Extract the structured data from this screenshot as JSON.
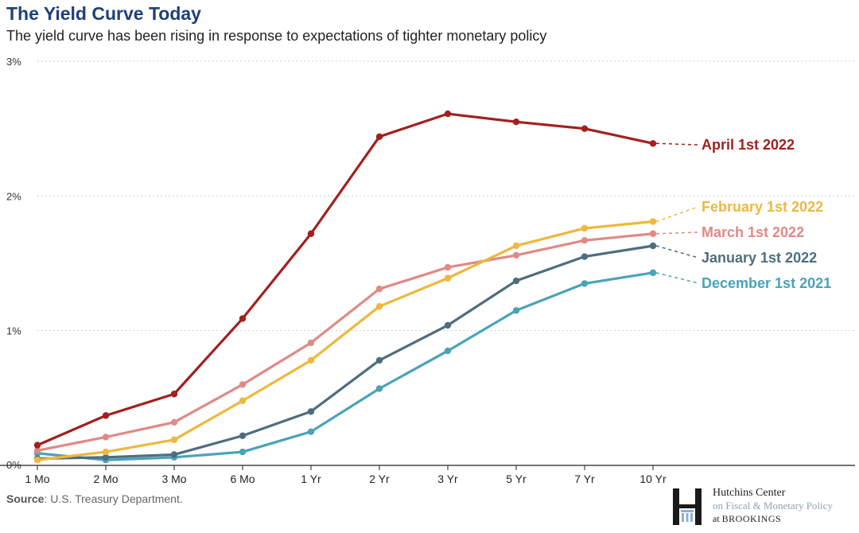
{
  "header": {
    "title": "The Yield Curve Today",
    "subtitle": "The yield curve has been rising in response to expectations of tighter monetary policy"
  },
  "footer": {
    "source_label": "Source",
    "source_text": ": U.S. Treasury Department."
  },
  "logo": {
    "icon": "brookings-h-icon",
    "line1": "Hutchins Center",
    "line2": "on Fiscal & Monetary Policy",
    "line3_prefix": "at ",
    "line3_brand": "BROOKINGS"
  },
  "chart_data": {
    "type": "line",
    "title": "The Yield Curve Today",
    "subtitle": "The yield curve has been rising in response to expectations of tighter monetary policy",
    "categories": [
      "1 Mo",
      "2 Mo",
      "3 Mo",
      "6 Mo",
      "1 Yr",
      "2 Yr",
      "3 Yr",
      "5 Yr",
      "7 Yr",
      "10 Yr"
    ],
    "ylim": [
      0,
      3
    ],
    "yticks": [
      {
        "value": 0,
        "label": "0%"
      },
      {
        "value": 1,
        "label": "1%"
      },
      {
        "value": 2,
        "label": "2%"
      },
      {
        "value": 3,
        "label": "3%"
      }
    ],
    "grid": "horizontal-dotted",
    "legend": "direct labels at right",
    "series": [
      {
        "name": "December 1st 2021",
        "color": "#4aa3b8",
        "values": [
          0.09,
          0.04,
          0.06,
          0.1,
          0.25,
          0.57,
          0.85,
          1.15,
          1.35,
          1.43
        ]
      },
      {
        "name": "January 1st 2022",
        "color": "#4d6e7f",
        "values": [
          0.05,
          0.06,
          0.08,
          0.22,
          0.4,
          0.78,
          1.04,
          1.37,
          1.55,
          1.63
        ]
      },
      {
        "name": "March 1st 2022",
        "color": "#df8a86",
        "values": [
          0.11,
          0.21,
          0.32,
          0.6,
          0.91,
          1.31,
          1.47,
          1.56,
          1.67,
          1.72
        ]
      },
      {
        "name": "February 1st 2022",
        "color": "#edb83c",
        "values": [
          0.04,
          0.1,
          0.19,
          0.48,
          0.78,
          1.18,
          1.39,
          1.63,
          1.76,
          1.81
        ]
      },
      {
        "name": "April 1st 2022",
        "color": "#a2201f",
        "values": [
          0.15,
          0.37,
          0.53,
          1.09,
          1.72,
          2.44,
          2.61,
          2.55,
          2.5,
          2.39
        ]
      }
    ]
  }
}
